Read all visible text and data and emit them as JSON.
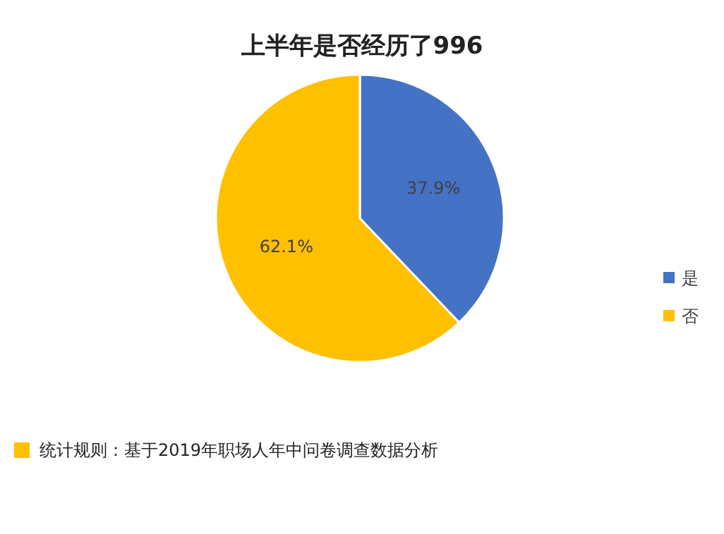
{
  "chart_data": {
    "type": "pie",
    "title": "上半年是否经历了996",
    "categories": [
      "是",
      "否"
    ],
    "values": [
      37.9,
      62.1
    ],
    "colors": [
      "#4472c4",
      "#ffc000"
    ],
    "value_labels": [
      "37.9%",
      "62.1%"
    ],
    "legend": "right",
    "annotations": [
      "统计规则：基于2019年职场人年中问卷调查数据分析"
    ]
  }
}
